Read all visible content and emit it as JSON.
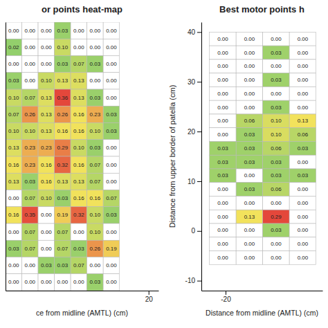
{
  "chart_data": [
    {
      "type": "heatmap",
      "title": "or points heat-map",
      "x_label": "ce from midline (AMTL) (cm)",
      "xlim": [
        -9,
        22
      ],
      "xticks": [
        20
      ],
      "ylim": [
        -7,
        41
      ],
      "tick_labels": "x",
      "data_labels": true,
      "x_edges": [
        -9,
        -5.7,
        -2.4,
        0.9,
        4.2,
        7.5,
        10.8,
        14.1
      ],
      "y_edges": [
        41,
        38,
        35,
        32,
        29,
        26,
        23,
        20,
        17,
        14,
        11,
        8,
        5,
        2,
        -1,
        -4,
        -7
      ],
      "values": [
        [
          0,
          0,
          0,
          0.03,
          0,
          0,
          0
        ],
        [
          0.02,
          0,
          0,
          0.1,
          0,
          0,
          0
        ],
        [
          0,
          0,
          0,
          0.03,
          0.07,
          0.03,
          0
        ],
        [
          0.03,
          0,
          0.1,
          0.13,
          0.13,
          0,
          0
        ],
        [
          0.1,
          0.07,
          0.13,
          0.36,
          0.13,
          0.03,
          0
        ],
        [
          0.07,
          0.26,
          0.13,
          0.26,
          0.16,
          0.23,
          0.03
        ],
        [
          0.1,
          0.1,
          0.13,
          0.16,
          0.16,
          0.1,
          0.03
        ],
        [
          0.13,
          0.23,
          0.23,
          0.29,
          0.1,
          0.03,
          0
        ],
        [
          0.16,
          0.23,
          0.16,
          0.32,
          0.16,
          0.07,
          0
        ],
        [
          0.13,
          0.03,
          0.16,
          0.13,
          0.13,
          0.07,
          0
        ],
        [
          0,
          0.07,
          0.1,
          0.03,
          0.16,
          0.16,
          0.07
        ],
        [
          0.16,
          0.35,
          0,
          0.19,
          0.32,
          0.1,
          0.03
        ],
        [
          0,
          0.07,
          0,
          0.07,
          0,
          0.1,
          0
        ],
        [
          0.03,
          0.07,
          0,
          0.07,
          0.03,
          0.26,
          0.19
        ],
        [
          0,
          0,
          0.03,
          0.03,
          0.07,
          0,
          0
        ],
        [
          0,
          0,
          0,
          0,
          0,
          0.03,
          0
        ]
      ],
      "value_labels": [
        [
          "0.00",
          "0.00",
          "0.00",
          "0.03",
          "0.00",
          "0.00",
          "0.00"
        ],
        [
          "0.02",
          "0.00",
          "0.00",
          "0.10",
          "0.00",
          "0.00",
          "0.00"
        ],
        [
          "0.00",
          "0.00",
          "0.00",
          "0.03",
          "0.07",
          "0.03",
          "0.00"
        ],
        [
          "0.03",
          "0.00",
          "0.10",
          "0.13",
          "0.13",
          "0.00",
          "0.00"
        ],
        [
          "0.10",
          "0.07",
          "0.13",
          "0.36",
          "0.13",
          "0.03",
          "0.00"
        ],
        [
          "0.07",
          "0.26",
          "0.13",
          "0.26",
          "0.16",
          "0.23",
          "0.03"
        ],
        [
          "0.10",
          "0.10",
          "0.13",
          "0.16",
          "0.16",
          "0.10",
          "0.03"
        ],
        [
          "0.13",
          "0.23",
          "0.23",
          "0.29",
          "0.10",
          "0.03",
          "0.00"
        ],
        [
          "0.16",
          "0.23",
          "0.16",
          "0.32",
          "0.16",
          "0.07",
          "0.00"
        ],
        [
          "0.13",
          "0.03",
          "0.16",
          "0.13",
          "0.13",
          "0.07",
          "0.00"
        ],
        [
          "0.00",
          "0.07",
          "0.10",
          "0.03",
          "0.16",
          "0.16",
          "0.07"
        ],
        [
          "0.16",
          "0.35",
          "0.00",
          "0.19",
          "0.32",
          "0.10",
          "0.03"
        ],
        [
          "0.00",
          "0.07",
          "0.00",
          "0.07",
          "0.00",
          "0.10",
          "0.00"
        ],
        [
          "0.03",
          "0.07",
          "0.00",
          "0.07",
          "0.03",
          "0.26",
          "0.19"
        ],
        [
          "0.00",
          "0.00",
          "0.03",
          "0.03",
          "0.07",
          "0.00",
          "0.00"
        ],
        [
          "0.00",
          "0.00",
          "0.00",
          "0.00",
          "0.00",
          "0.03",
          "0.00"
        ]
      ]
    },
    {
      "type": "heatmap",
      "title": "Best motor points h",
      "x_label": "Distance from midline (AMTL) (cm)",
      "y_label": "Distance from upper border of patella (cm)",
      "xlim": [
        -23,
        -8
      ],
      "xticks": [
        -20
      ],
      "ylim": [
        -12,
        42
      ],
      "yticks": [
        -10,
        0,
        10,
        20,
        30,
        40
      ],
      "data_labels": true,
      "x_edges": [
        -22,
        -18.7,
        -15.4,
        -12.1,
        -8.8
      ],
      "y_edges": [
        40,
        37.25,
        34.5,
        31.75,
        29,
        26.25,
        23.5,
        20.75,
        18,
        15.25,
        12.5,
        9.75,
        7,
        4.25,
        1.5,
        -1.25,
        -4,
        -6.75
      ],
      "values": [
        [
          0,
          0,
          0,
          0
        ],
        [
          0,
          0,
          0.03,
          0
        ],
        [
          0,
          0,
          0,
          0
        ],
        [
          0,
          0,
          0.03,
          0
        ],
        [
          0,
          0,
          0,
          0
        ],
        [
          0,
          0,
          0.03,
          0
        ],
        [
          0,
          0.06,
          0.1,
          0.13
        ],
        [
          0,
          0.03,
          0.1,
          0.06
        ],
        [
          0.03,
          0.03,
          0.06,
          0.03
        ],
        [
          0.03,
          0.03,
          0.03,
          0
        ],
        [
          0.03,
          0,
          0.03,
          0.03
        ],
        [
          0,
          0.03,
          0.06,
          0
        ],
        [
          0,
          0,
          0,
          0
        ],
        [
          0,
          0.13,
          0.29,
          0
        ],
        [
          0,
          0,
          0.03,
          0
        ],
        [
          0,
          0,
          0,
          0
        ],
        [
          0,
          0,
          0,
          0
        ]
      ],
      "value_labels": [
        [
          "0.00",
          "0.00",
          "0.00",
          "0.00"
        ],
        [
          "0.00",
          "0.00",
          "0.03",
          "0.00"
        ],
        [
          "0.00",
          "0.00",
          "0.00",
          "0.00"
        ],
        [
          "0.00",
          "0.00",
          "0.03",
          "0.00"
        ],
        [
          "0.00",
          "0.00",
          "0.00",
          "0.00"
        ],
        [
          "0.00",
          "0.00",
          "0.03",
          "0.00"
        ],
        [
          "0.00",
          "0.06",
          "0.10",
          "0.13"
        ],
        [
          "0.00",
          "0.03",
          "0.10",
          "0.06"
        ],
        [
          "0.03",
          "0.03",
          "0.06",
          "0.03"
        ],
        [
          "0.03",
          "0.03",
          "0.03",
          "0.00"
        ],
        [
          "0.03",
          "0.00",
          "0.03",
          "0.03"
        ],
        [
          "0.00",
          "0.03",
          "0.06",
          "0.00"
        ],
        [
          "0.00",
          "0.00",
          "0.00",
          "0.00"
        ],
        [
          "0.00",
          "0.13",
          "0.29",
          "0.00"
        ],
        [
          "0.00",
          "0.00",
          "0.03",
          "0.00"
        ],
        [
          "0.00",
          "0.00",
          "0.00",
          "0.00"
        ],
        [
          "0.00",
          "0.00",
          "0.00",
          "0.00"
        ]
      ]
    }
  ]
}
